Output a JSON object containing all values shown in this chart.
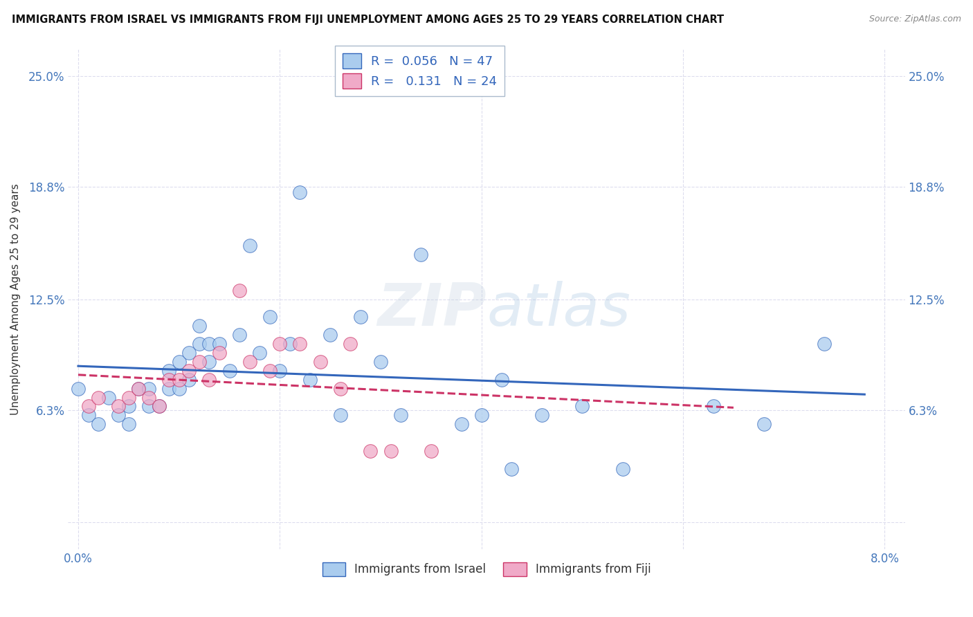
{
  "title": "IMMIGRANTS FROM ISRAEL VS IMMIGRANTS FROM FIJI UNEMPLOYMENT AMONG AGES 25 TO 29 YEARS CORRELATION CHART",
  "source": "Source: ZipAtlas.com",
  "ylabel": "Unemployment Among Ages 25 to 29 years",
  "xlim": [
    -0.001,
    0.082
  ],
  "ylim": [
    -0.015,
    0.265
  ],
  "yticks": [
    0.0,
    0.063,
    0.125,
    0.188,
    0.25
  ],
  "ytick_labels": [
    "",
    "6.3%",
    "12.5%",
    "18.8%",
    "25.0%"
  ],
  "xticks": [
    0.0,
    0.02,
    0.04,
    0.06,
    0.08
  ],
  "xtick_labels": [
    "0.0%",
    "",
    "",
    "",
    "8.0%"
  ],
  "watermark_zip": "ZIP",
  "watermark_atlas": "atlas",
  "legend_israel_r": "0.056",
  "legend_israel_n": "47",
  "legend_fiji_r": "0.131",
  "legend_fiji_n": "24",
  "color_israel": "#aaccee",
  "color_fiji": "#f0aac8",
  "color_trend_israel": "#3366bb",
  "color_trend_fiji": "#cc3366",
  "israel_x": [
    0.0,
    0.001,
    0.002,
    0.003,
    0.004,
    0.005,
    0.005,
    0.006,
    0.007,
    0.007,
    0.008,
    0.009,
    0.009,
    0.01,
    0.01,
    0.011,
    0.011,
    0.012,
    0.012,
    0.013,
    0.013,
    0.014,
    0.015,
    0.016,
    0.017,
    0.018,
    0.019,
    0.02,
    0.021,
    0.022,
    0.023,
    0.025,
    0.026,
    0.028,
    0.03,
    0.032,
    0.034,
    0.038,
    0.04,
    0.042,
    0.043,
    0.046,
    0.05,
    0.054,
    0.063,
    0.068,
    0.074
  ],
  "israel_y": [
    0.075,
    0.06,
    0.055,
    0.07,
    0.06,
    0.065,
    0.055,
    0.075,
    0.075,
    0.065,
    0.065,
    0.085,
    0.075,
    0.09,
    0.075,
    0.095,
    0.08,
    0.1,
    0.11,
    0.09,
    0.1,
    0.1,
    0.085,
    0.105,
    0.155,
    0.095,
    0.115,
    0.085,
    0.1,
    0.185,
    0.08,
    0.105,
    0.06,
    0.115,
    0.09,
    0.06,
    0.15,
    0.055,
    0.06,
    0.08,
    0.03,
    0.06,
    0.065,
    0.03,
    0.065,
    0.055,
    0.1
  ],
  "fiji_x": [
    0.001,
    0.002,
    0.004,
    0.005,
    0.006,
    0.007,
    0.008,
    0.009,
    0.01,
    0.011,
    0.012,
    0.013,
    0.014,
    0.016,
    0.017,
    0.019,
    0.02,
    0.022,
    0.024,
    0.026,
    0.027,
    0.029,
    0.031,
    0.035
  ],
  "fiji_y": [
    0.065,
    0.07,
    0.065,
    0.07,
    0.075,
    0.07,
    0.065,
    0.08,
    0.08,
    0.085,
    0.09,
    0.08,
    0.095,
    0.13,
    0.09,
    0.085,
    0.1,
    0.1,
    0.09,
    0.075,
    0.1,
    0.04,
    0.04,
    0.04
  ],
  "background_color": "#ffffff",
  "grid_color": "#ddddee"
}
